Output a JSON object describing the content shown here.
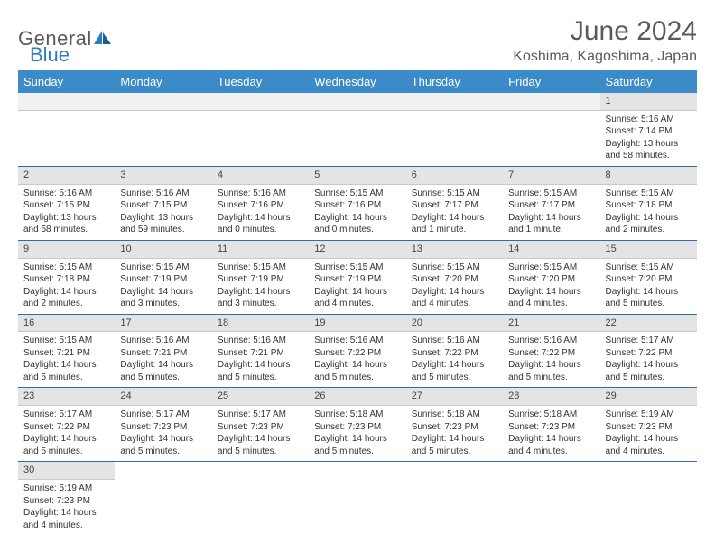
{
  "brand": {
    "general": "General",
    "blue": "Blue"
  },
  "title": "June 2024",
  "location": "Koshima, Kagoshima, Japan",
  "colors": {
    "header_bg": "#3b8bc8",
    "header_text": "#ffffff",
    "daynum_bg": "#e4e4e4",
    "row_border": "#2f6fa8",
    "brand_gray": "#5a5a5a",
    "brand_blue": "#2f7bc2"
  },
  "typography": {
    "title_fontsize": 30,
    "location_fontsize": 16,
    "dayheader_fontsize": 13,
    "cell_fontsize": 10
  },
  "day_headers": [
    "Sunday",
    "Monday",
    "Tuesday",
    "Wednesday",
    "Thursday",
    "Friday",
    "Saturday"
  ],
  "weeks": [
    [
      null,
      null,
      null,
      null,
      null,
      null,
      {
        "n": "1",
        "sr": "Sunrise: 5:16 AM",
        "ss": "Sunset: 7:14 PM",
        "dl": "Daylight: 13 hours and 58 minutes."
      }
    ],
    [
      {
        "n": "2",
        "sr": "Sunrise: 5:16 AM",
        "ss": "Sunset: 7:15 PM",
        "dl": "Daylight: 13 hours and 58 minutes."
      },
      {
        "n": "3",
        "sr": "Sunrise: 5:16 AM",
        "ss": "Sunset: 7:15 PM",
        "dl": "Daylight: 13 hours and 59 minutes."
      },
      {
        "n": "4",
        "sr": "Sunrise: 5:16 AM",
        "ss": "Sunset: 7:16 PM",
        "dl": "Daylight: 14 hours and 0 minutes."
      },
      {
        "n": "5",
        "sr": "Sunrise: 5:15 AM",
        "ss": "Sunset: 7:16 PM",
        "dl": "Daylight: 14 hours and 0 minutes."
      },
      {
        "n": "6",
        "sr": "Sunrise: 5:15 AM",
        "ss": "Sunset: 7:17 PM",
        "dl": "Daylight: 14 hours and 1 minute."
      },
      {
        "n": "7",
        "sr": "Sunrise: 5:15 AM",
        "ss": "Sunset: 7:17 PM",
        "dl": "Daylight: 14 hours and 1 minute."
      },
      {
        "n": "8",
        "sr": "Sunrise: 5:15 AM",
        "ss": "Sunset: 7:18 PM",
        "dl": "Daylight: 14 hours and 2 minutes."
      }
    ],
    [
      {
        "n": "9",
        "sr": "Sunrise: 5:15 AM",
        "ss": "Sunset: 7:18 PM",
        "dl": "Daylight: 14 hours and 2 minutes."
      },
      {
        "n": "10",
        "sr": "Sunrise: 5:15 AM",
        "ss": "Sunset: 7:19 PM",
        "dl": "Daylight: 14 hours and 3 minutes."
      },
      {
        "n": "11",
        "sr": "Sunrise: 5:15 AM",
        "ss": "Sunset: 7:19 PM",
        "dl": "Daylight: 14 hours and 3 minutes."
      },
      {
        "n": "12",
        "sr": "Sunrise: 5:15 AM",
        "ss": "Sunset: 7:19 PM",
        "dl": "Daylight: 14 hours and 4 minutes."
      },
      {
        "n": "13",
        "sr": "Sunrise: 5:15 AM",
        "ss": "Sunset: 7:20 PM",
        "dl": "Daylight: 14 hours and 4 minutes."
      },
      {
        "n": "14",
        "sr": "Sunrise: 5:15 AM",
        "ss": "Sunset: 7:20 PM",
        "dl": "Daylight: 14 hours and 4 minutes."
      },
      {
        "n": "15",
        "sr": "Sunrise: 5:15 AM",
        "ss": "Sunset: 7:20 PM",
        "dl": "Daylight: 14 hours and 5 minutes."
      }
    ],
    [
      {
        "n": "16",
        "sr": "Sunrise: 5:15 AM",
        "ss": "Sunset: 7:21 PM",
        "dl": "Daylight: 14 hours and 5 minutes."
      },
      {
        "n": "17",
        "sr": "Sunrise: 5:16 AM",
        "ss": "Sunset: 7:21 PM",
        "dl": "Daylight: 14 hours and 5 minutes."
      },
      {
        "n": "18",
        "sr": "Sunrise: 5:16 AM",
        "ss": "Sunset: 7:21 PM",
        "dl": "Daylight: 14 hours and 5 minutes."
      },
      {
        "n": "19",
        "sr": "Sunrise: 5:16 AM",
        "ss": "Sunset: 7:22 PM",
        "dl": "Daylight: 14 hours and 5 minutes."
      },
      {
        "n": "20",
        "sr": "Sunrise: 5:16 AM",
        "ss": "Sunset: 7:22 PM",
        "dl": "Daylight: 14 hours and 5 minutes."
      },
      {
        "n": "21",
        "sr": "Sunrise: 5:16 AM",
        "ss": "Sunset: 7:22 PM",
        "dl": "Daylight: 14 hours and 5 minutes."
      },
      {
        "n": "22",
        "sr": "Sunrise: 5:17 AM",
        "ss": "Sunset: 7:22 PM",
        "dl": "Daylight: 14 hours and 5 minutes."
      }
    ],
    [
      {
        "n": "23",
        "sr": "Sunrise: 5:17 AM",
        "ss": "Sunset: 7:22 PM",
        "dl": "Daylight: 14 hours and 5 minutes."
      },
      {
        "n": "24",
        "sr": "Sunrise: 5:17 AM",
        "ss": "Sunset: 7:23 PM",
        "dl": "Daylight: 14 hours and 5 minutes."
      },
      {
        "n": "25",
        "sr": "Sunrise: 5:17 AM",
        "ss": "Sunset: 7:23 PM",
        "dl": "Daylight: 14 hours and 5 minutes."
      },
      {
        "n": "26",
        "sr": "Sunrise: 5:18 AM",
        "ss": "Sunset: 7:23 PM",
        "dl": "Daylight: 14 hours and 5 minutes."
      },
      {
        "n": "27",
        "sr": "Sunrise: 5:18 AM",
        "ss": "Sunset: 7:23 PM",
        "dl": "Daylight: 14 hours and 5 minutes."
      },
      {
        "n": "28",
        "sr": "Sunrise: 5:18 AM",
        "ss": "Sunset: 7:23 PM",
        "dl": "Daylight: 14 hours and 4 minutes."
      },
      {
        "n": "29",
        "sr": "Sunrise: 5:19 AM",
        "ss": "Sunset: 7:23 PM",
        "dl": "Daylight: 14 hours and 4 minutes."
      }
    ],
    [
      {
        "n": "30",
        "sr": "Sunrise: 5:19 AM",
        "ss": "Sunset: 7:23 PM",
        "dl": "Daylight: 14 hours and 4 minutes."
      },
      null,
      null,
      null,
      null,
      null,
      null
    ]
  ]
}
